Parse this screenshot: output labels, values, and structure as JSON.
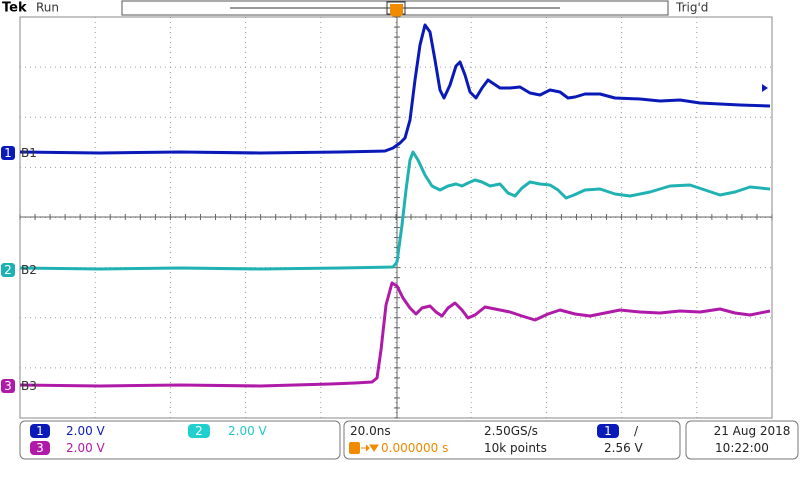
{
  "header": {
    "brand": "Tek",
    "status": "Run",
    "trigger_state": "Trig'd",
    "trigger_marker": "T"
  },
  "channels": [
    {
      "number": "1",
      "label": "B1",
      "scale": "2.00 V"
    },
    {
      "number": "2",
      "label": "B2",
      "scale": "2.00 V"
    },
    {
      "number": "3",
      "label": "B3",
      "scale": "2.00 V"
    }
  ],
  "timebase": {
    "scale": "20.0ns",
    "sample_rate": "2.50GS/s",
    "delay": "0.000000 s",
    "record_length": "10k points"
  },
  "trigger": {
    "source": "1",
    "slope": "/",
    "level": "2.56 V"
  },
  "datetime": {
    "date": "21 Aug 2018",
    "time": "10:22:00"
  }
}
